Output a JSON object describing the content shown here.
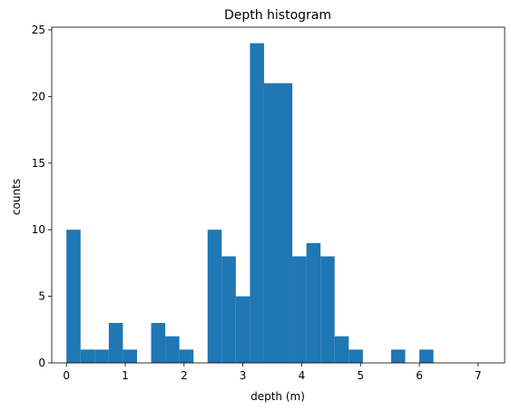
{
  "chart_data": {
    "type": "bar",
    "title": "Depth histogram",
    "xlabel": "depth (m)",
    "ylabel": "counts",
    "bin_edges": [
      0,
      0.24,
      0.48,
      0.72,
      0.96,
      1.2,
      1.44,
      1.68,
      1.92,
      2.16,
      2.4,
      2.64,
      2.88,
      3.12,
      3.36,
      3.6,
      3.84,
      4.08,
      4.32,
      4.56,
      4.8,
      5.04,
      5.28,
      5.52,
      5.76,
      6.0,
      6.24,
      6.48,
      6.72,
      6.96,
      7.2
    ],
    "counts": [
      10,
      1,
      1,
      3,
      1,
      0,
      3,
      2,
      1,
      0,
      10,
      8,
      5,
      24,
      21,
      21,
      8,
      9,
      8,
      2,
      1,
      0,
      0,
      1,
      0,
      1,
      0,
      0,
      0,
      0
    ],
    "xlim": [
      -0.25,
      7.45
    ],
    "ylim": [
      0,
      25.2
    ],
    "xticks": [
      "0",
      "1",
      "2",
      "3",
      "4",
      "5",
      "6",
      "7"
    ],
    "yticks": [
      "0",
      "5",
      "10",
      "15",
      "20",
      "25"
    ],
    "bar_color": "#1f77b4",
    "grid": false
  }
}
